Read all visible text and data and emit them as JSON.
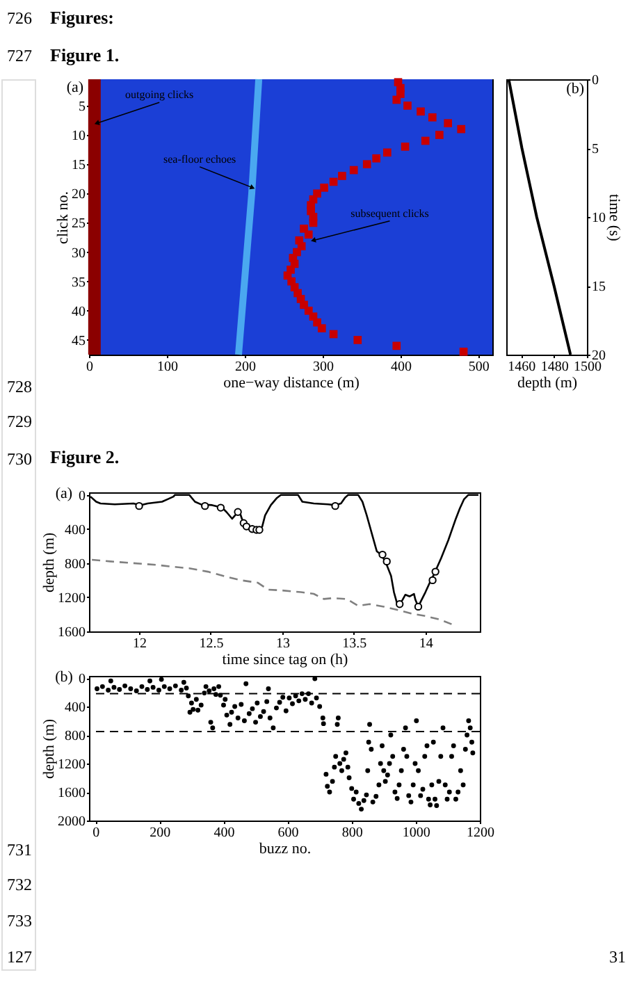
{
  "chart_data": [
    {
      "type": "other",
      "annotations": [
        "726",
        "727",
        "728",
        "729",
        "730",
        "731",
        "732",
        "733",
        "127"
      ]
    },
    {
      "type": "other",
      "annotations": [
        "Figures:",
        "Figure 1."
      ]
    },
    {
      "type": "line",
      "title": "(a)",
      "xlabel": "one−way distance (m)",
      "ylabel": "click no.",
      "xlim": [
        0,
        518
      ],
      "xticks": [
        0,
        100,
        200,
        300,
        400,
        500
      ],
      "ylim": [
        47.5,
        0.5
      ],
      "yticks": [
        5,
        10,
        15,
        20,
        25,
        30,
        35,
        40,
        45
      ],
      "bands": [
        {
          "axis": "x",
          "from": 0,
          "to": 518,
          "color": "#1b3fd6"
        }
      ],
      "series": [
        {
          "type": "line",
          "color": "#8b0000",
          "x": [
            7,
            7
          ],
          "values": [
            0.5,
            47.5
          ]
        },
        {
          "type": "line",
          "color": "#4aa8f0",
          "x": [
            218,
            209,
            192
          ],
          "values": [
            0.5,
            20,
            47.5
          ]
        },
        {
          "type": "scatter",
          "marker": "square",
          "color": "#c80000",
          "x": [
            397,
            400,
            400,
            395,
            409,
            426,
            441,
            461,
            478,
            450,
            432,
            406,
            383,
            369,
            357,
            340,
            325,
            314,
            302,
            293,
            288,
            285,
            285,
            288,
            288,
            276,
            282,
            270,
            273,
            267,
            262,
            264,
            259,
            255,
            260,
            264,
            268,
            272,
            276,
            282,
            288,
            293,
            299,
            314,
            345,
            395,
            481
          ],
          "values": [
            1,
            2,
            3,
            4,
            5,
            6,
            7,
            8,
            9,
            10,
            11,
            12,
            13,
            14,
            15,
            16,
            17,
            18,
            19,
            20,
            21,
            22,
            23,
            24,
            25,
            26,
            27,
            28,
            29,
            30,
            31,
            32,
            33,
            34,
            35,
            36,
            37,
            38,
            39,
            40,
            41,
            42,
            43,
            44,
            45,
            46,
            47
          ]
        }
      ],
      "annotations": [
        {
          "text": "outgoing clicks",
          "x": 10,
          "y": 8
        },
        {
          "text": "sea-floor echoes",
          "x": 210,
          "y": 19
        },
        {
          "text": "subsequent clicks",
          "x": 288,
          "y": 28
        }
      ]
    },
    {
      "type": "line",
      "title": "(b)",
      "xlabel": "depth (m)",
      "y2label": "time (s)",
      "xlim": [
        1451,
        1500
      ],
      "xticks": [
        1460,
        1480,
        1500
      ],
      "y2lim": [
        20,
        0
      ],
      "y2ticks": [
        0,
        5,
        10,
        15,
        20
      ],
      "series": [
        {
          "axis": "y2",
          "color": "#000000",
          "x": [
            1452.5,
            1460.5,
            1469.5,
            1480,
            1490
          ],
          "values": [
            0,
            5,
            10,
            15,
            20
          ]
        }
      ]
    },
    {
      "type": "other",
      "annotations": [
        "Figure 2."
      ]
    },
    {
      "type": "line",
      "title": "(a)",
      "xlabel": "time since tag on (h)",
      "ylabel": "depth (m)",
      "xlim": [
        11.65,
        14.38
      ],
      "xticks": [
        12,
        12.5,
        13,
        13.5,
        14
      ],
      "ylim": [
        1600,
        -30
      ],
      "yticks": [
        0,
        400,
        800,
        1200,
        1600
      ],
      "series": [
        {
          "type": "line",
          "color": "#808080",
          "line_style": "dashed",
          "x": [
            11.67,
            11.8,
            11.96,
            12.12,
            12.22,
            12.35,
            12.48,
            12.61,
            12.71,
            12.83,
            12.9,
            13.0,
            13.13,
            13.22,
            13.29,
            13.35,
            13.45,
            13.53,
            13.61,
            13.71,
            13.81,
            13.9,
            14.0,
            14.1,
            14.19
          ],
          "values": [
            760,
            780,
            800,
            820,
            840,
            860,
            900,
            960,
            1000,
            1030,
            1110,
            1120,
            1140,
            1160,
            1220,
            1210,
            1220,
            1300,
            1280,
            1310,
            1350,
            1390,
            1420,
            1460,
            1520
          ]
        },
        {
          "type": "line",
          "color": "#000000",
          "x": [
            11.66,
            11.7,
            11.73,
            11.83,
            11.96,
            12.01,
            12.06,
            12.16,
            12.2,
            12.24,
            12.25,
            12.35,
            12.39,
            12.43,
            12.51,
            12.58,
            12.61,
            12.65,
            12.67,
            12.7,
            12.72,
            12.75,
            12.8,
            12.84,
            12.86,
            12.88,
            12.92,
            12.96,
            12.99,
            13.11,
            13.14,
            13.22,
            13.32,
            13.37,
            13.41,
            13.44,
            13.46,
            13.53,
            13.56,
            13.59,
            13.63,
            13.66,
            13.69,
            13.72,
            13.76,
            13.78,
            13.8,
            13.82,
            13.84,
            13.86,
            13.89,
            13.92,
            13.93,
            13.95,
            13.97,
            14.0,
            14.03,
            14.06,
            14.11,
            14.16,
            14.21,
            14.24,
            14.27,
            14.3,
            14.37
          ],
          "values": [
            20,
            80,
            100,
            110,
            100,
            120,
            100,
            80,
            50,
            20,
            0,
            0,
            80,
            110,
            120,
            150,
            200,
            280,
            240,
            190,
            290,
            370,
            400,
            410,
            370,
            240,
            120,
            40,
            0,
            0,
            80,
            100,
            110,
            120,
            100,
            30,
            0,
            0,
            80,
            240,
            480,
            660,
            700,
            780,
            950,
            1140,
            1260,
            1280,
            1230,
            1170,
            1190,
            1160,
            1230,
            1310,
            1240,
            1140,
            1030,
            930,
            740,
            530,
            290,
            160,
            50,
            0,
            0
          ]
        },
        {
          "type": "scatter",
          "marker": "circle",
          "color": "#000000",
          "x": [
            12.0,
            12.46,
            12.57,
            12.69,
            12.73,
            12.75,
            12.79,
            12.82,
            12.84,
            13.37,
            13.7,
            13.73,
            13.82,
            13.95,
            14.05,
            14.07
          ],
          "values": [
            130,
            130,
            150,
            200,
            330,
            370,
            400,
            410,
            410,
            130,
            700,
            780,
            1280,
            1310,
            1000,
            900
          ]
        }
      ]
    },
    {
      "type": "scatter",
      "title": "(b)",
      "xlabel": "buzz no.",
      "ylabel": "depth (m)",
      "xlim": [
        -20,
        1200
      ],
      "xticks": [
        0,
        200,
        400,
        600,
        800,
        1000,
        1200
      ],
      "ylim": [
        2000,
        -30
      ],
      "yticks": [
        0,
        400,
        800,
        1200,
        1600,
        2000
      ],
      "ref_lines": [
        {
          "axis": "y",
          "value": 220,
          "color": "#000000",
          "line_style": "dashed"
        },
        {
          "axis": "y",
          "value": 750,
          "color": "#000000",
          "line_style": "dashed"
        }
      ],
      "series": [
        {
          "type": "scatter",
          "marker": "circle",
          "color": "#000000",
          "x": [
            5,
            22,
            40,
            48,
            58,
            75,
            92,
            110,
            128,
            145,
            162,
            170,
            180,
            198,
            206,
            215,
            232,
            250,
            268,
            276,
            284,
            290,
            295,
            300,
            305,
            315,
            320,
            330,
            340,
            345,
            355,
            360,
            366,
            370,
            376,
            385,
            390,
            400,
            405,
            410,
            420,
            425,
            435,
            445,
            455,
            465,
            470,
            480,
            490,
            500,
            505,
            515,
            525,
            535,
            540,
            545,
            555,
            565,
            575,
            585,
            595,
            605,
            615,
            625,
            635,
            645,
            655,
            665,
            675,
            685,
            690,
            700,
            710,
            712,
            720,
            724,
            731,
            740,
            746,
            750,
            755,
            758,
            763,
            769,
            775,
            782,
            788,
            792,
            800,
            806,
            814,
            822,
            830,
            838,
            846,
            850,
            853,
            856,
            861,
            866,
            876,
            885,
            890,
            895,
            900,
            905,
            912,
            918,
            922,
            928,
            935,
            942,
            948,
            955,
            962,
            968,
            972,
            978,
            985,
            992,
            998,
            1002,
            1008,
            1015,
            1022,
            1028,
            1035,
            1040,
            1045,
            1050,
            1055,
            1060,
            1065,
            1072,
            1078,
            1085,
            1092,
            1098,
            1105,
            1112,
            1118,
            1125,
            1132,
            1140,
            1148,
            1155,
            1160,
            1165,
            1170,
            1175,
            1178
          ],
          "values": [
            150,
            120,
            170,
            40,
            130,
            160,
            110,
            150,
            180,
            120,
            160,
            40,
            130,
            170,
            20,
            120,
            150,
            110,
            170,
            60,
            140,
            250,
            480,
            350,
            440,
            300,
            450,
            380,
            210,
            120,
            180,
            620,
            700,
            150,
            230,
            120,
            240,
            380,
            300,
            520,
            650,
            480,
            400,
            560,
            370,
            600,
            80,
            500,
            430,
            620,
            350,
            540,
            470,
            330,
            150,
            560,
            700,
            420,
            340,
            270,
            460,
            280,
            360,
            250,
            320,
            220,
            300,
            220,
            350,
            10,
            280,
            400,
            560,
            640,
            1350,
            1520,
            1600,
            1450,
            1250,
            1100,
            650,
            560,
            1200,
            1300,
            1140,
            1050,
            1250,
            1400,
            1550,
            1700,
            1600,
            1760,
            1840,
            1720,
            1640,
            1300,
            900,
            650,
            1000,
            1740,
            1660,
            1500,
            1200,
            950,
            1300,
            1450,
            1360,
            1200,
            800,
            1100,
            1600,
            1690,
            1500,
            1300,
            1000,
            700,
            1100,
            1650,
            1740,
            1500,
            1200,
            600,
            1300,
            1650,
            1560,
            1100,
            950,
            1700,
            1780,
            1500,
            900,
            1700,
            1790,
            1450,
            1100,
            700,
            1500,
            1700,
            1600,
            1100,
            950,
            1700,
            1600,
            1300,
            1500,
            1000,
            800,
            600,
            700,
            900,
            1050
          ]
        }
      ]
    },
    {
      "type": "other",
      "annotations": [
        "31"
      ]
    }
  ]
}
